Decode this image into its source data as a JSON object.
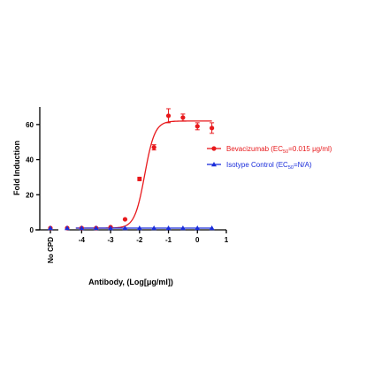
{
  "chart_data": {
    "type": "scatter",
    "xlabel": "Antibody, (Log[μg/ml])",
    "ylabel": "Fold Induction",
    "ylim": [
      0,
      70
    ],
    "y_ticks": [
      "0",
      "20",
      "40",
      "60"
    ],
    "x_ticks": [
      "-4",
      "-3",
      "-2",
      "-1",
      "0",
      "1"
    ],
    "x_tick_values": [
      -4,
      -3,
      -2,
      -1,
      0,
      1
    ],
    "xlim": [
      -4.5,
      1
    ],
    "control_label": "No CPD",
    "series": [
      {
        "name": "Bevacizumab (EC50=0.015 μg/ml)",
        "color": "#e8191c",
        "marker": "circle",
        "control_value": 1,
        "x": [
          -4.5,
          -4.0,
          -3.5,
          -3.0,
          -2.5,
          -2.0,
          -1.5,
          -1.0,
          -0.5,
          0.0,
          0.5
        ],
        "y": [
          1,
          1,
          1,
          1.5,
          6,
          29,
          47,
          65,
          64,
          59,
          58
        ],
        "error": [
          0,
          0,
          0,
          0,
          0,
          1,
          1.5,
          4,
          2,
          2,
          3
        ],
        "fit": {
          "bottom": 1,
          "top": 62,
          "logEC50": -1.82,
          "hill": 2.5
        }
      },
      {
        "name": "Isotype Control (EC50=N/A)",
        "color": "#1a2ddb",
        "marker": "triangle",
        "control_value": 1,
        "x": [
          -4.5,
          -4.0,
          -3.5,
          -3.0,
          -2.5,
          -2.0,
          -1.5,
          -1.0,
          -0.5,
          0.0,
          0.5
        ],
        "y": [
          1,
          1,
          1,
          1,
          1,
          1,
          1,
          1,
          1,
          1,
          1
        ]
      }
    ],
    "legend": {
      "placement": "right",
      "entries": [
        {
          "prefix": "Bevacizumab (EC",
          "sub": "50",
          "suffix": "=0.015 μg/ml)"
        },
        {
          "prefix": "Isotype Control (EC",
          "sub": "50",
          "suffix": "=N/A)"
        }
      ]
    }
  }
}
